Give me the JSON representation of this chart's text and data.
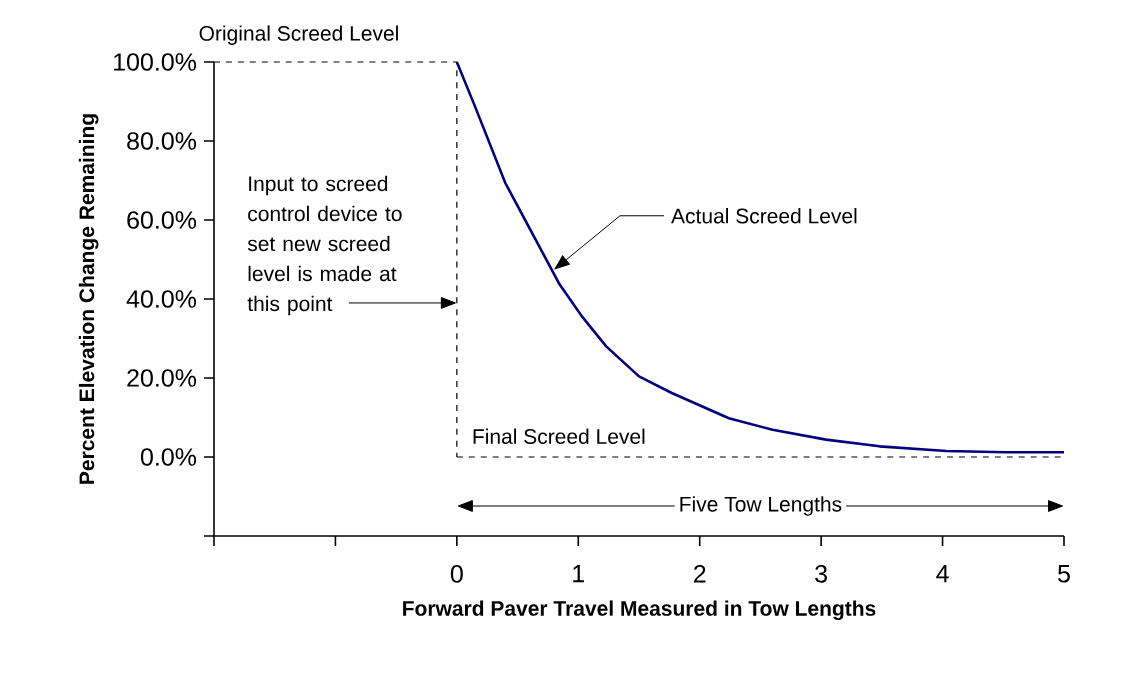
{
  "chart_data": {
    "type": "line",
    "xlabel": "Forward Paver Travel Measured in Tow Lengths",
    "ylabel": "Percent Elevation Change Remaining",
    "xlim": [
      -2,
      5
    ],
    "xticks": [
      {
        "value": -2,
        "label": null
      },
      {
        "value": -1,
        "label": null
      },
      0,
      1,
      2,
      3,
      4,
      5
    ],
    "ylim": [
      -20,
      100
    ],
    "yticks": [
      {
        "value": -20,
        "label": null
      },
      {
        "value": 0,
        "label": "0.0%"
      },
      {
        "value": 20,
        "label": "20.0%"
      },
      {
        "value": 40,
        "label": "40.0%"
      },
      {
        "value": 60,
        "label": "60.0%"
      },
      {
        "value": 80,
        "label": "80.0%"
      },
      {
        "value": 100,
        "label": "100.0%"
      }
    ],
    "series": [
      {
        "color": "#000080",
        "x": [
          0,
          0.15,
          0.4,
          0.62,
          0.84,
          1.03,
          1.23,
          1.5,
          1.77,
          2.24,
          2.6,
          3.04,
          3.48,
          4.03,
          4.52,
          5.0
        ],
        "values": [
          100,
          88.7,
          69.3,
          56.7,
          44,
          35.6,
          28,
          20.4,
          16.2,
          9.8,
          6.9,
          4.4,
          2.7,
          1.5,
          1.2,
          1.2
        ]
      },
      {
        "color": "#000000",
        "line_style": "dashed",
        "x": [
          -2,
          0,
          0
        ],
        "values": [
          100,
          100,
          0
        ]
      },
      {
        "color": "#000000",
        "line_style": "dashed",
        "x": [
          0,
          5
        ],
        "values": [
          0,
          0
        ]
      }
    ],
    "annotations": [
      {
        "text": "Original Screed Level",
        "x": -1.3,
        "y": 100
      },
      {
        "text": "Actual Screed Level",
        "x": 0.8,
        "y": 47.4
      },
      {
        "text": "Input to screed control device to set new screed level is made at this point",
        "x": 0,
        "y": 39
      },
      {
        "text": "Final Screed Level",
        "x": 0,
        "y": 0
      },
      "Five Tow Lengths"
    ]
  }
}
